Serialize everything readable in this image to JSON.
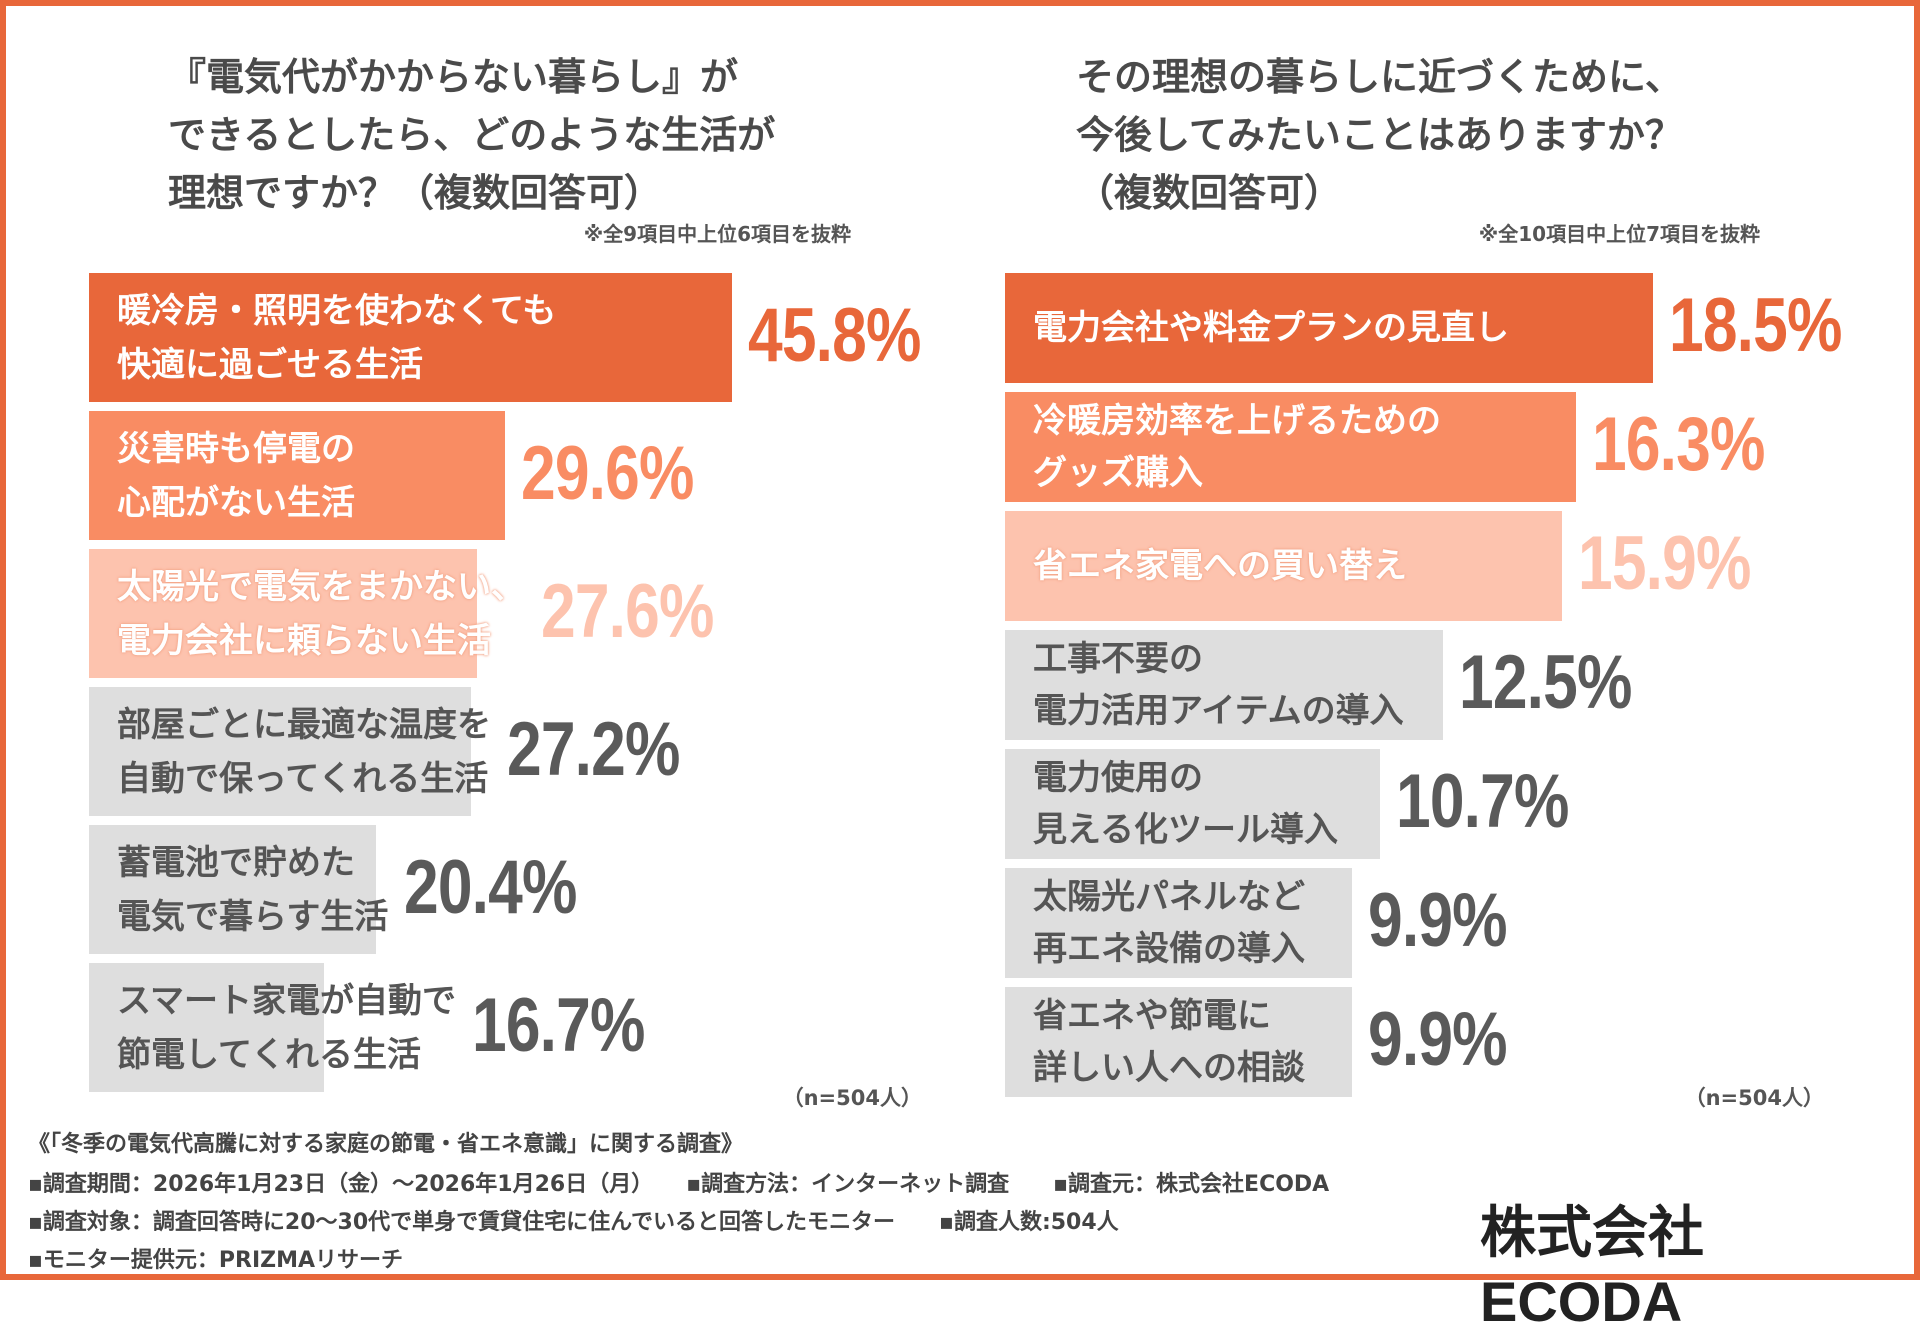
{
  "colors": {
    "accent": "#E8673A",
    "bar1": "#E8673A",
    "bar2": "#F98C63",
    "bar3": "#FDC3AE",
    "gray": "#DEDEDE",
    "gray_text": "#5A5A5A"
  },
  "chart_data": [
    {
      "type": "bar",
      "orientation": "horizontal",
      "title": "『電気代がかからない暮らし』が\nできるとしたら、どのような生活が\n理想ですか？（複数回答可）",
      "note": "※全9項目中上位6項目を抜粋",
      "sample": "（n=504人）",
      "categories": [
        "暖冷房・照明を使わなくても\n快適に過ごせる生活",
        "災害時も停電の\n心配がない生活",
        "太陽光で電気をまかない、\n電力会社に頼らない生活",
        "部屋ごとに最適な温度を\n自動で保ってくれる生活",
        "蓄電池で貯めた\n電気で暮らす生活",
        "スマート家電が自動で\n節電してくれる生活"
      ],
      "values": [
        45.8,
        29.6,
        27.6,
        27.2,
        20.4,
        16.7
      ],
      "labels": [
        "45.8%",
        "29.6%",
        "27.6%",
        "27.2%",
        "20.4%",
        "16.7%"
      ],
      "unit": "%"
    },
    {
      "type": "bar",
      "orientation": "horizontal",
      "title": "その理想の暮らしに近づくために、\n今後してみたいことはありますか？\n（複数回答可）",
      "note": "※全10項目中上位7項目を抜粋",
      "sample": "（n=504人）",
      "categories": [
        "電力会社や料金プランの見直し",
        "冷暖房効率を上げるための\nグッズ購入",
        "省エネ家電への買い替え",
        "工事不要の\n電力活用アイテムの導入",
        "電力使用の\n見える化ツール導入",
        "太陽光パネルなど\n再エネ設備の導入",
        "省エネや節電に\n詳しい人への相談"
      ],
      "values": [
        18.5,
        16.3,
        15.9,
        12.5,
        10.7,
        9.9,
        9.9
      ],
      "labels": [
        "18.5%",
        "16.3%",
        "15.9%",
        "12.5%",
        "10.7%",
        "9.9%",
        "9.9%"
      ],
      "unit": "%"
    }
  ],
  "footer": {
    "survey_title": "《「冬季の電気代高騰に対する家庭の節電・省エネ意識」に関する調査》",
    "line1": "▪調査期間：2026年1月23日（金）～2026年1月26日（月）　　▪調査方法：インターネット調査　　▪調査元：株式会社ECODA",
    "line2": "▪調査対象：調査回答時に20～30代で単身で賃貸住宅に住んでいると回答したモニター　　▪調査人数:504人",
    "line3": "▪モニター提供元：PRIZMAリサーチ",
    "logo": "株式会社 ECODA"
  }
}
